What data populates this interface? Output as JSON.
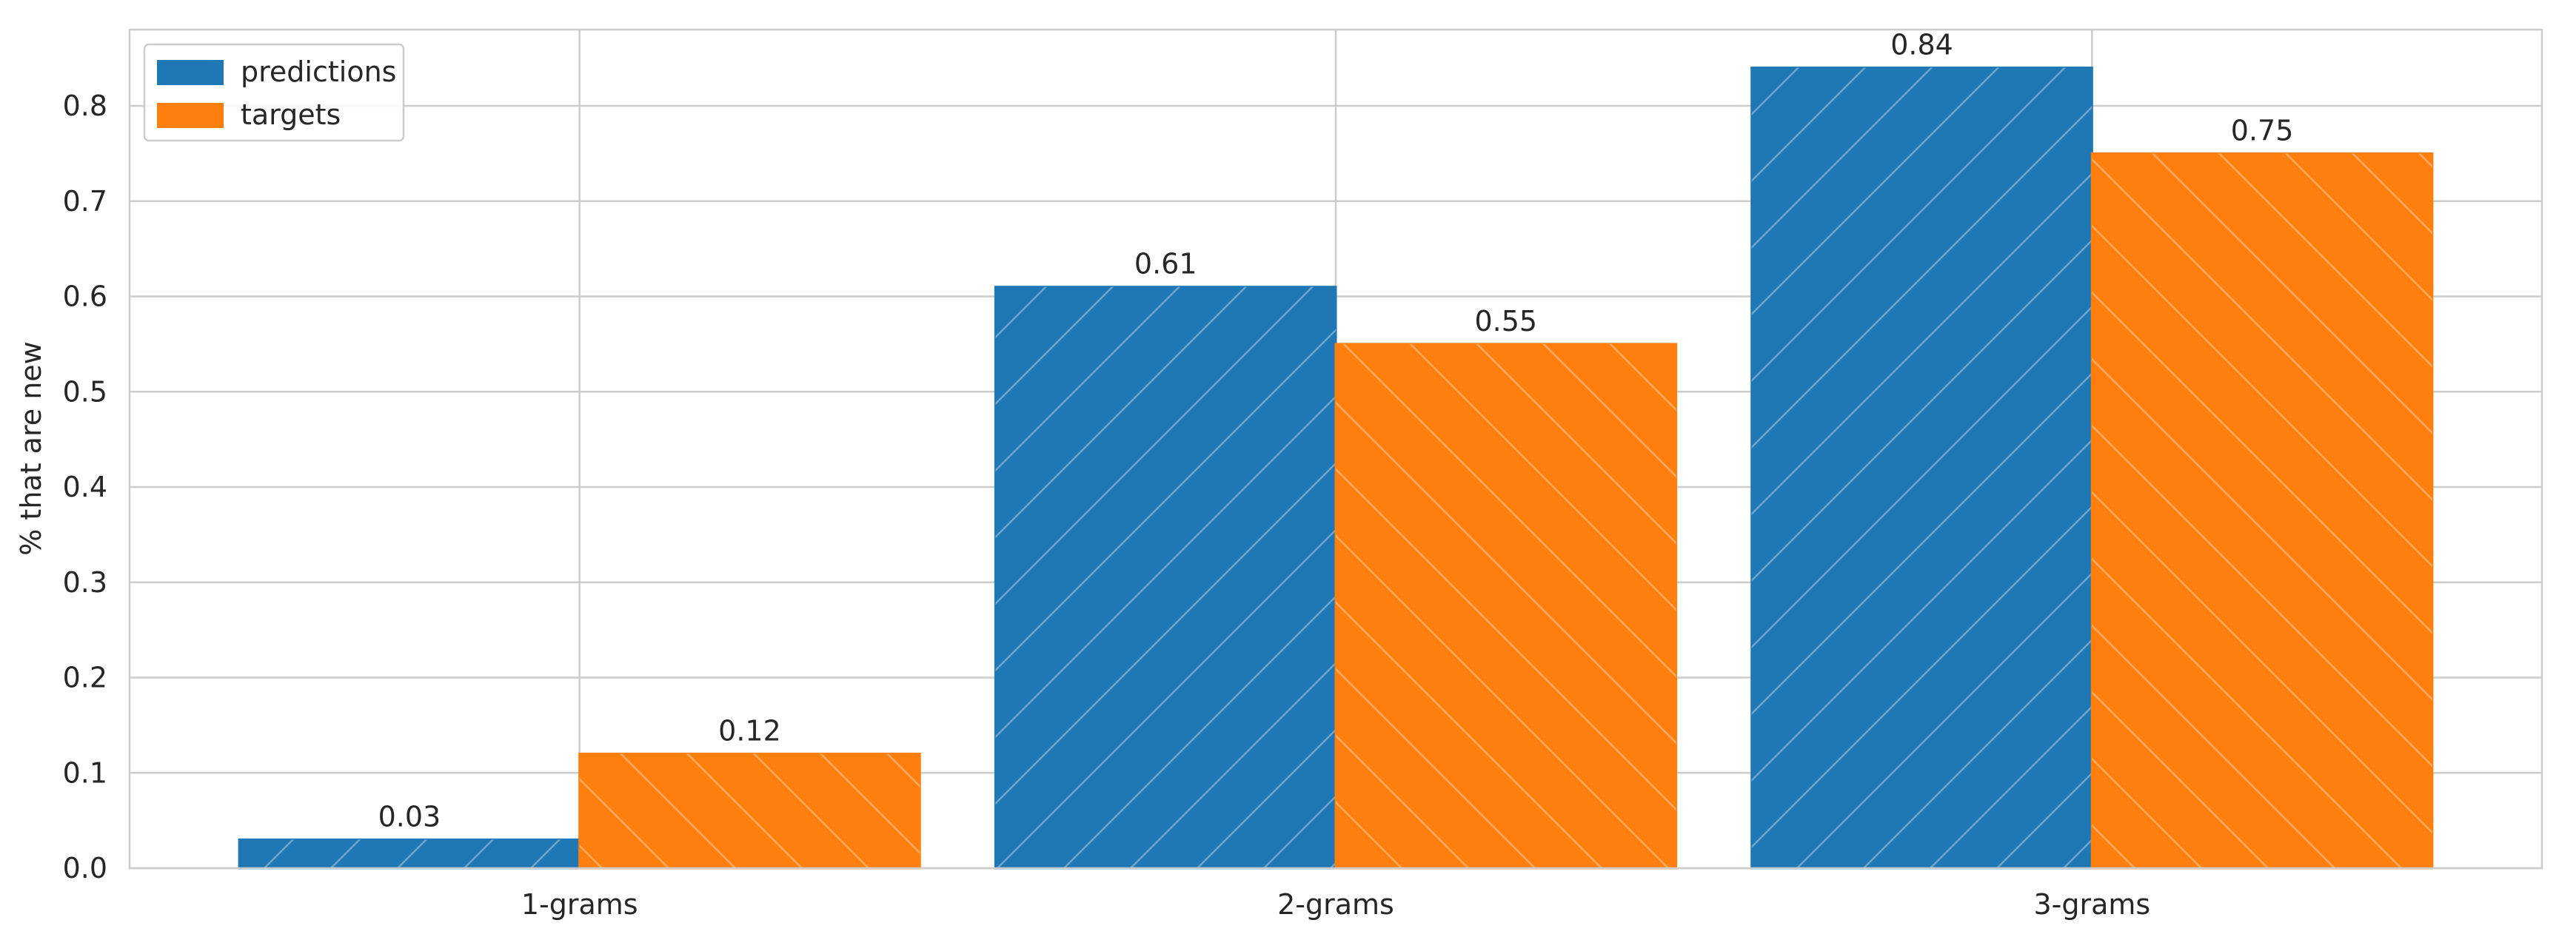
{
  "chart_data": {
    "type": "bar",
    "title": "",
    "xlabel": "",
    "ylabel": "% that are new",
    "categories": [
      "1-grams",
      "2-grams",
      "3-grams"
    ],
    "series": [
      {
        "name": "predictions",
        "values": [
          0.03,
          0.61,
          0.84
        ],
        "color": "#1f77b4",
        "hatch": "forward-diagonal"
      },
      {
        "name": "targets",
        "values": [
          0.12,
          0.55,
          0.75
        ],
        "color": "#ff7f0e",
        "hatch": "back-diagonal"
      }
    ],
    "data_labels": [
      [
        "0.03",
        "0.61",
        "0.84"
      ],
      [
        "0.12",
        "0.55",
        "0.75"
      ]
    ],
    "yticks": [
      "0.0",
      "0.1",
      "0.2",
      "0.3",
      "0.4",
      "0.5",
      "0.6",
      "0.7",
      "0.8"
    ],
    "ylim": [
      0,
      0.88
    ],
    "grid": true,
    "legend_position": "top-left"
  }
}
